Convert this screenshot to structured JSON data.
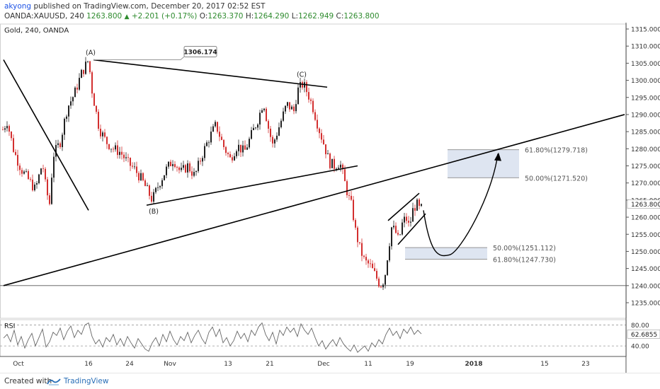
{
  "header": {
    "username": "akyong",
    "published_text": "published on TradingView.com, December 20, 2017 02:52 EST",
    "symbol": "OANDA:XAUUSD, 240",
    "last_price": "1263.800",
    "change_arrow": "▲",
    "change": "+2.201 (+0.17%)",
    "o_label": "O:",
    "o_value": "1263.370",
    "h_label": "H:",
    "h_value": "1264.290",
    "l_label": "L:",
    "l_value": "1262.949",
    "c_label": "C:",
    "c_value": "1263.800"
  },
  "footer": {
    "created_with": "Created with",
    "brand": "TradingView"
  },
  "colors": {
    "candle_up": "#222222",
    "candle_down": "#d32f2f",
    "zone_fill": "#d8e0ee",
    "rsi_line": "#666666"
  },
  "chart_data": {
    "type": "candlestick",
    "title": "Gold, 240, OANDA",
    "x_ticks": [
      "Oct",
      "16",
      "24",
      "Nov",
      "13",
      "21",
      "Dec",
      "11",
      "19",
      "2018",
      "15",
      "23"
    ],
    "y_ticks": [
      1315,
      1310,
      1305,
      1300,
      1295,
      1290,
      1285,
      1280,
      1275,
      1270,
      1265,
      1260,
      1255,
      1250,
      1245,
      1240,
      1235
    ],
    "y_ticks_text": [
      "1315.000",
      "1310.000",
      "1305.000",
      "1300.000",
      "1295.000",
      "1290.000",
      "1285.000",
      "1280.000",
      "1275.000",
      "1270.000",
      "1265.000",
      "1260.000",
      "1255.000",
      "1250.000",
      "1245.000",
      "1240.000",
      "1235.000"
    ],
    "ylim": [
      1232,
      1317
    ],
    "current_price": "1263.800",
    "horizontal_line": 1240,
    "price_path": [
      [
        0,
        1284
      ],
      [
        10,
        1288
      ],
      [
        20,
        1279
      ],
      [
        30,
        1274
      ],
      [
        40,
        1271
      ],
      [
        50,
        1268
      ],
      [
        60,
        1276
      ],
      [
        65,
        1268
      ],
      [
        70,
        1264
      ],
      [
        75,
        1278
      ],
      [
        85,
        1282
      ],
      [
        95,
        1292
      ],
      [
        105,
        1296
      ],
      [
        115,
        1302
      ],
      [
        125,
        1306
      ],
      [
        130,
        1297
      ],
      [
        140,
        1286
      ],
      [
        150,
        1282
      ],
      [
        160,
        1280
      ],
      [
        170,
        1279
      ],
      [
        180,
        1276
      ],
      [
        190,
        1274
      ],
      [
        200,
        1271
      ],
      [
        210,
        1267
      ],
      [
        215,
        1265
      ],
      [
        225,
        1270
      ],
      [
        235,
        1274
      ],
      [
        245,
        1277
      ],
      [
        255,
        1273
      ],
      [
        265,
        1275
      ],
      [
        275,
        1272
      ],
      [
        285,
        1278
      ],
      [
        295,
        1283
      ],
      [
        305,
        1287
      ],
      [
        315,
        1281
      ],
      [
        325,
        1277
      ],
      [
        335,
        1281
      ],
      [
        345,
        1279
      ],
      [
        355,
        1284
      ],
      [
        365,
        1289
      ],
      [
        372,
        1294
      ],
      [
        378,
        1287
      ],
      [
        385,
        1281
      ],
      [
        395,
        1287
      ],
      [
        405,
        1293
      ],
      [
        415,
        1291
      ],
      [
        420,
        1297
      ],
      [
        428,
        1299
      ],
      [
        435,
        1296
      ],
      [
        442,
        1292
      ],
      [
        450,
        1286
      ],
      [
        458,
        1281
      ],
      [
        465,
        1276
      ],
      [
        472,
        1275
      ],
      [
        480,
        1276
      ],
      [
        487,
        1270
      ],
      [
        492,
        1266
      ],
      [
        497,
        1263
      ],
      [
        502,
        1256
      ],
      [
        508,
        1251
      ],
      [
        515,
        1247
      ],
      [
        522,
        1246
      ],
      [
        530,
        1243
      ],
      [
        537,
        1240
      ],
      [
        543,
        1242
      ],
      [
        548,
        1250
      ],
      [
        553,
        1257
      ],
      [
        558,
        1256
      ],
      [
        563,
        1253
      ],
      [
        568,
        1258
      ],
      [
        573,
        1260
      ],
      [
        578,
        1257
      ],
      [
        583,
        1262
      ],
      [
        588,
        1264
      ],
      [
        593,
        1262
      ],
      [
        597,
        1263
      ]
    ],
    "trendlines": [
      {
        "x1": 5,
        "y1": 1306,
        "x2": 125,
        "y2": 1262
      },
      {
        "x1": 132,
        "y1": 1306,
        "x2": 462,
        "y2": 1298
      },
      {
        "x1": 207,
        "y1": 1263.5,
        "x2": 505,
        "y2": 1275
      },
      {
        "x1": 5,
        "y1": 1240,
        "x2": 882,
        "y2": 1290
      },
      {
        "x1": 548,
        "y1": 1259,
        "x2": 592,
        "y2": 1267
      },
      {
        "x1": 562,
        "y1": 1252,
        "x2": 601,
        "y2": 1261
      }
    ],
    "wave_labels": [
      {
        "text": "(A)",
        "x": 128,
        "price": 1307.5
      },
      {
        "text": "(B)",
        "x": 217,
        "price": 1261
      },
      {
        "text": "(C)",
        "x": 426,
        "price": 1301
      }
    ],
    "price_callout": {
      "text": "1306.174",
      "x": 282,
      "price": 1308.5
    },
    "fib_zones": [
      {
        "x1": 632,
        "x2": 733,
        "top": 1279.718,
        "bottom": 1271.52,
        "labels": [
          "61.80%(1279.718)",
          "50.00%(1271.520)"
        ]
      },
      {
        "x1": 572,
        "x2": 688,
        "top": 1251.112,
        "bottom": 1247.73,
        "labels": [
          "50.00%(1251.112)",
          "61.80%(1247.730)"
        ]
      }
    ],
    "projection_path": {
      "from_x": 598,
      "from_price": 1262,
      "low_x": 635,
      "low_price": 1249,
      "to_x": 703,
      "to_price": 1278.5
    },
    "rsi": {
      "label": "RSI",
      "value": "62.6855",
      "levels": [
        80,
        40
      ],
      "levels_text": [
        "80.00",
        "40.00"
      ],
      "ylim": [
        20,
        90
      ],
      "values": [
        [
          5,
          55
        ],
        [
          10,
          62
        ],
        [
          15,
          48
        ],
        [
          20,
          70
        ],
        [
          25,
          42
        ],
        [
          30,
          58
        ],
        [
          35,
          36
        ],
        [
          40,
          52
        ],
        [
          45,
          64
        ],
        [
          50,
          40
        ],
        [
          55,
          56
        ],
        [
          60,
          72
        ],
        [
          65,
          38
        ],
        [
          70,
          48
        ],
        [
          75,
          66
        ],
        [
          80,
          60
        ],
        [
          85,
          74
        ],
        [
          90,
          52
        ],
        [
          95,
          68
        ],
        [
          100,
          78
        ],
        [
          105,
          56
        ],
        [
          110,
          70
        ],
        [
          115,
          62
        ],
        [
          120,
          80
        ],
        [
          125,
          84
        ],
        [
          130,
          58
        ],
        [
          135,
          44
        ],
        [
          140,
          52
        ],
        [
          145,
          38
        ],
        [
          150,
          56
        ],
        [
          155,
          48
        ],
        [
          160,
          62
        ],
        [
          165,
          42
        ],
        [
          170,
          54
        ],
        [
          175,
          40
        ],
        [
          180,
          58
        ],
        [
          185,
          46
        ],
        [
          190,
          36
        ],
        [
          195,
          54
        ],
        [
          200,
          44
        ],
        [
          205,
          34
        ],
        [
          210,
          30
        ],
        [
          215,
          46
        ],
        [
          220,
          56
        ],
        [
          225,
          40
        ],
        [
          230,
          62
        ],
        [
          235,
          48
        ],
        [
          240,
          68
        ],
        [
          245,
          52
        ],
        [
          250,
          42
        ],
        [
          255,
          58
        ],
        [
          260,
          50
        ],
        [
          265,
          66
        ],
        [
          270,
          46
        ],
        [
          275,
          60
        ],
        [
          280,
          70
        ],
        [
          285,
          54
        ],
        [
          290,
          44
        ],
        [
          295,
          66
        ],
        [
          300,
          76
        ],
        [
          305,
          58
        ],
        [
          310,
          72
        ],
        [
          315,
          46
        ],
        [
          320,
          56
        ],
        [
          325,
          40
        ],
        [
          330,
          50
        ],
        [
          335,
          68
        ],
        [
          340,
          54
        ],
        [
          345,
          64
        ],
        [
          350,
          48
        ],
        [
          355,
          70
        ],
        [
          360,
          60
        ],
        [
          365,
          76
        ],
        [
          370,
          84
        ],
        [
          375,
          62
        ],
        [
          380,
          50
        ],
        [
          385,
          66
        ],
        [
          390,
          44
        ],
        [
          395,
          70
        ],
        [
          400,
          60
        ],
        [
          405,
          76
        ],
        [
          410,
          66
        ],
        [
          415,
          74
        ],
        [
          420,
          58
        ],
        [
          425,
          82
        ],
        [
          430,
          70
        ],
        [
          435,
          62
        ],
        [
          440,
          74
        ],
        [
          445,
          56
        ],
        [
          450,
          40
        ],
        [
          455,
          50
        ],
        [
          460,
          34
        ],
        [
          465,
          44
        ],
        [
          470,
          52
        ],
        [
          475,
          40
        ],
        [
          480,
          56
        ],
        [
          485,
          44
        ],
        [
          490,
          36
        ],
        [
          495,
          30
        ],
        [
          500,
          42
        ],
        [
          505,
          28
        ],
        [
          510,
          34
        ],
        [
          515,
          40
        ],
        [
          520,
          30
        ],
        [
          525,
          46
        ],
        [
          530,
          38
        ],
        [
          535,
          52
        ],
        [
          540,
          44
        ],
        [
          545,
          62
        ],
        [
          550,
          74
        ],
        [
          555,
          60
        ],
        [
          560,
          68
        ],
        [
          565,
          54
        ],
        [
          570,
          72
        ],
        [
          575,
          64
        ],
        [
          580,
          76
        ],
        [
          585,
          62
        ],
        [
          590,
          70
        ],
        [
          595,
          63
        ]
      ]
    }
  }
}
